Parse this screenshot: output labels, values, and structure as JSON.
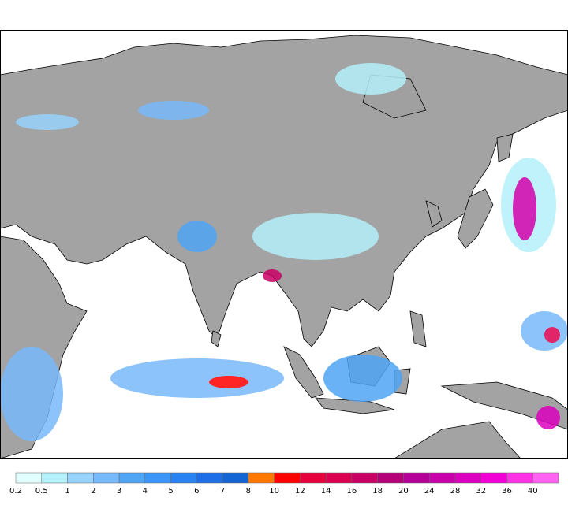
{
  "colorbar": {
    "labels": [
      0.2,
      0.5,
      1,
      2,
      3,
      4,
      5,
      6,
      7,
      8,
      10,
      12,
      14,
      16,
      18,
      20,
      24,
      28,
      32,
      36,
      40
    ],
    "colors": [
      "#e1ffff",
      "#b4f0fa",
      "#96d2fa",
      "#78b9fa",
      "#50a5f5",
      "#3c96f5",
      "#2882f0",
      "#1e6ee6",
      "#1464d2",
      "#ff7800",
      "#ff0000",
      "#e6003c",
      "#dc0050",
      "#c80064",
      "#b40078",
      "#b40096",
      "#c800aa",
      "#dc00be",
      "#f000d2",
      "#ff32e6",
      "#ff64f0"
    ]
  }
}
